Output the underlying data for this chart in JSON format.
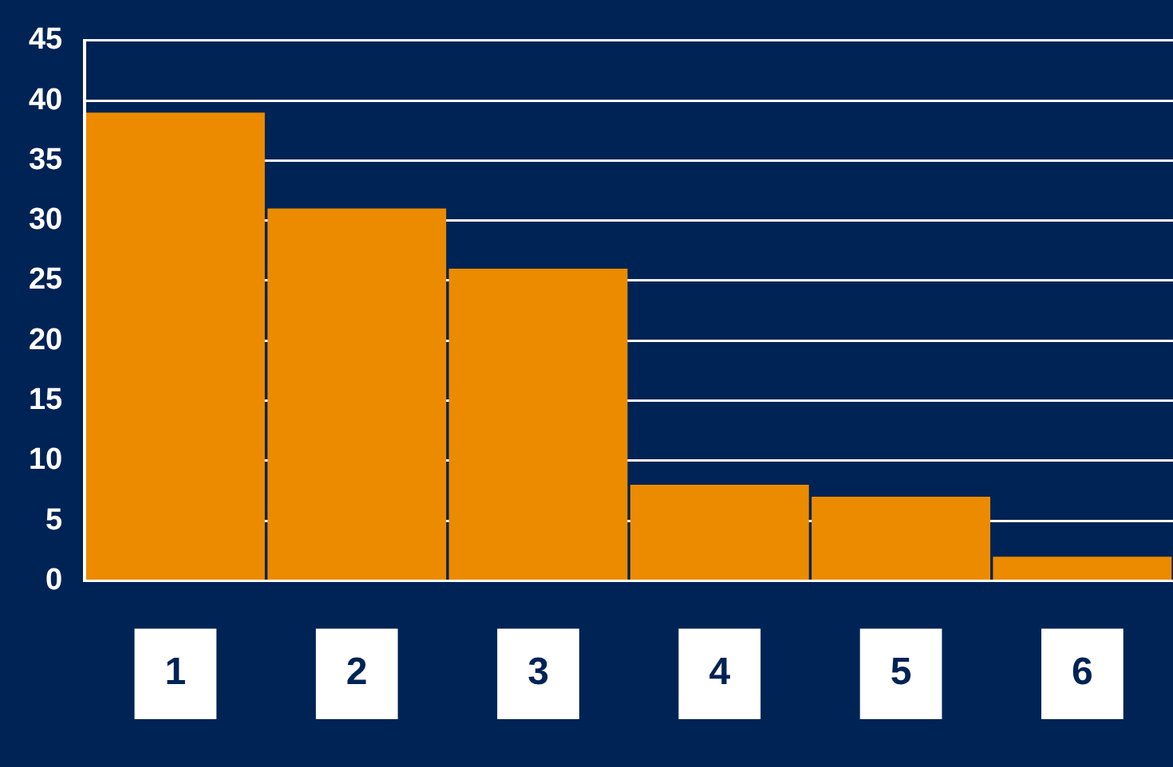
{
  "chart_data": {
    "type": "bar",
    "categories": [
      "1",
      "2",
      "3",
      "4",
      "5",
      "6"
    ],
    "values": [
      39,
      31,
      26,
      8,
      7,
      2
    ],
    "color": "#ec8b00",
    "ylim": [
      0,
      45
    ],
    "yticks": [
      0,
      5,
      10,
      15,
      20,
      25,
      30,
      35,
      40,
      45
    ],
    "grid": "y",
    "legend": false
  }
}
